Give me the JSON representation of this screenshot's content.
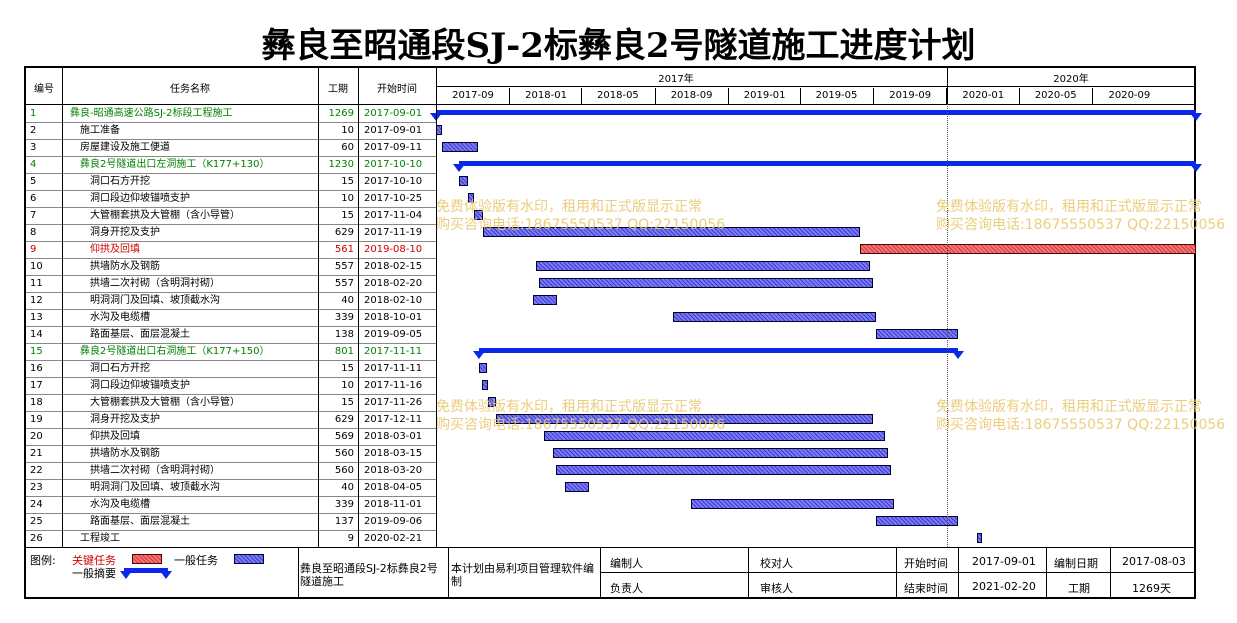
{
  "title": "彝良至昭通段SJ-2标彝良2号隧道施工进度计划",
  "headers": {
    "no": "编号",
    "name": "任务名称",
    "dur": "工期",
    "start": "开始时间"
  },
  "timeline": {
    "years": [
      "2017年",
      "2020年"
    ],
    "ticks": [
      "2017-09",
      "2018-01",
      "2018-05",
      "2018-09",
      "2019-01",
      "2019-05",
      "2019-09",
      "2020-01",
      "2020-05",
      "2020-09"
    ]
  },
  "tasks": [
    {
      "no": "1",
      "name": "彝良-昭通高速公路SJ-2标段工程施工",
      "dur": "1269",
      "start": "2017-09-01",
      "type": "summary",
      "indent": 0,
      "s": 0,
      "e": 1269
    },
    {
      "no": "2",
      "name": "施工准备",
      "dur": "10",
      "start": "2017-09-01",
      "type": "normal",
      "indent": 1,
      "s": 0,
      "e": 10
    },
    {
      "no": "3",
      "name": "房屋建设及施工便道",
      "dur": "60",
      "start": "2017-09-11",
      "type": "normal",
      "indent": 1,
      "s": 10,
      "e": 70
    },
    {
      "no": "4",
      "name": "彝良2号隧道出口左洞施工（K177+130）",
      "dur": "1230",
      "start": "2017-10-10",
      "type": "summary",
      "indent": 1,
      "s": 39,
      "e": 1269
    },
    {
      "no": "5",
      "name": "洞口石方开挖",
      "dur": "15",
      "start": "2017-10-10",
      "type": "normal",
      "indent": 2,
      "s": 39,
      "e": 54
    },
    {
      "no": "6",
      "name": "洞口段边仰坡锚喷支护",
      "dur": "10",
      "start": "2017-10-25",
      "type": "normal",
      "indent": 2,
      "s": 54,
      "e": 64
    },
    {
      "no": "7",
      "name": "大管棚套拱及大管棚（含小导管）",
      "dur": "15",
      "start": "2017-11-04",
      "type": "normal",
      "indent": 2,
      "s": 64,
      "e": 79
    },
    {
      "no": "8",
      "name": "洞身开挖及支护",
      "dur": "629",
      "start": "2017-11-19",
      "type": "normal",
      "indent": 2,
      "s": 79,
      "e": 708
    },
    {
      "no": "9",
      "name": "仰拱及回填",
      "dur": "561",
      "start": "2019-08-10",
      "type": "critical",
      "indent": 2,
      "s": 708,
      "e": 1269
    },
    {
      "no": "10",
      "name": "拱墙防水及钢筋",
      "dur": "557",
      "start": "2018-02-15",
      "type": "normal",
      "indent": 2,
      "s": 167,
      "e": 724
    },
    {
      "no": "11",
      "name": "拱墙二次衬砌（含明洞衬砌）",
      "dur": "557",
      "start": "2018-02-20",
      "type": "normal",
      "indent": 2,
      "s": 172,
      "e": 729
    },
    {
      "no": "12",
      "name": "明洞洞门及回填、坡顶截水沟",
      "dur": "40",
      "start": "2018-02-10",
      "type": "normal",
      "indent": 2,
      "s": 162,
      "e": 202
    },
    {
      "no": "13",
      "name": "水沟及电缆槽",
      "dur": "339",
      "start": "2018-10-01",
      "type": "normal",
      "indent": 2,
      "s": 395,
      "e": 734
    },
    {
      "no": "14",
      "name": "路面基层、面层混凝土",
      "dur": "138",
      "start": "2019-09-05",
      "type": "normal",
      "indent": 2,
      "s": 734,
      "e": 872
    },
    {
      "no": "15",
      "name": "彝良2号隧道出口右洞施工（K177+150）",
      "dur": "801",
      "start": "2017-11-11",
      "type": "summary",
      "indent": 1,
      "s": 71,
      "e": 872
    },
    {
      "no": "16",
      "name": "洞口石方开挖",
      "dur": "15",
      "start": "2017-11-11",
      "type": "normal",
      "indent": 2,
      "s": 71,
      "e": 86
    },
    {
      "no": "17",
      "name": "洞口段边仰坡锚喷支护",
      "dur": "10",
      "start": "2017-11-16",
      "type": "normal",
      "indent": 2,
      "s": 76,
      "e": 86
    },
    {
      "no": "18",
      "name": "大管棚套拱及大管棚（含小导管）",
      "dur": "15",
      "start": "2017-11-26",
      "type": "normal",
      "indent": 2,
      "s": 86,
      "e": 101
    },
    {
      "no": "19",
      "name": "洞身开挖及支护",
      "dur": "629",
      "start": "2017-12-11",
      "type": "normal",
      "indent": 2,
      "s": 101,
      "e": 730
    },
    {
      "no": "20",
      "name": "仰拱及回填",
      "dur": "569",
      "start": "2018-03-01",
      "type": "normal",
      "indent": 2,
      "s": 181,
      "e": 750
    },
    {
      "no": "21",
      "name": "拱墙防水及钢筋",
      "dur": "560",
      "start": "2018-03-15",
      "type": "normal",
      "indent": 2,
      "s": 195,
      "e": 755
    },
    {
      "no": "22",
      "name": "拱墙二次衬砌（含明洞衬砌）",
      "dur": "560",
      "start": "2018-03-20",
      "type": "normal",
      "indent": 2,
      "s": 200,
      "e": 760
    },
    {
      "no": "23",
      "name": "明洞洞门及回填、坡顶截水沟",
      "dur": "40",
      "start": "2018-04-05",
      "type": "normal",
      "indent": 2,
      "s": 216,
      "e": 256
    },
    {
      "no": "24",
      "name": "水沟及电缆槽",
      "dur": "339",
      "start": "2018-11-01",
      "type": "normal",
      "indent": 2,
      "s": 426,
      "e": 765
    },
    {
      "no": "25",
      "name": "路面基层、面层混凝土",
      "dur": "137",
      "start": "2019-09-06",
      "type": "normal",
      "indent": 2,
      "s": 735,
      "e": 872
    },
    {
      "no": "26",
      "name": "工程竣工",
      "dur": "9",
      "start": "2020-02-21",
      "type": "normal",
      "indent": 1,
      "s": 903,
      "e": 912
    }
  ],
  "watermark": {
    "line1": "免费体验版有水印，租用和正式版显示正常",
    "line2": "购买咨询电话:18675550537 QQ:22150056"
  },
  "footer": {
    "legend_label": "图例:",
    "critical_label": "关键任务",
    "normal_label": "一般任务",
    "summary_label": "一般摘要",
    "project": "彝良至昭通段SJ-2标彝良2号隧道施工",
    "software": "本计划由易利项目管理软件编制",
    "prepared_by": "编制人",
    "checked_by": "校对人",
    "start_label": "开始时间",
    "start_value": "2017-09-01",
    "date_label": "编制日期",
    "date_value": "2017-08-03",
    "owner": "负责人",
    "reviewer": "审核人",
    "end_label": "结束时间",
    "end_value": "2021-02-20",
    "dur_label": "工期",
    "dur_value": "1269天"
  },
  "colors": {
    "critical": "#d83a3a",
    "normal": "#5a5ae0",
    "summary": "#0a28e6",
    "critical_text": "#d00000",
    "summary_text": "#008000"
  }
}
